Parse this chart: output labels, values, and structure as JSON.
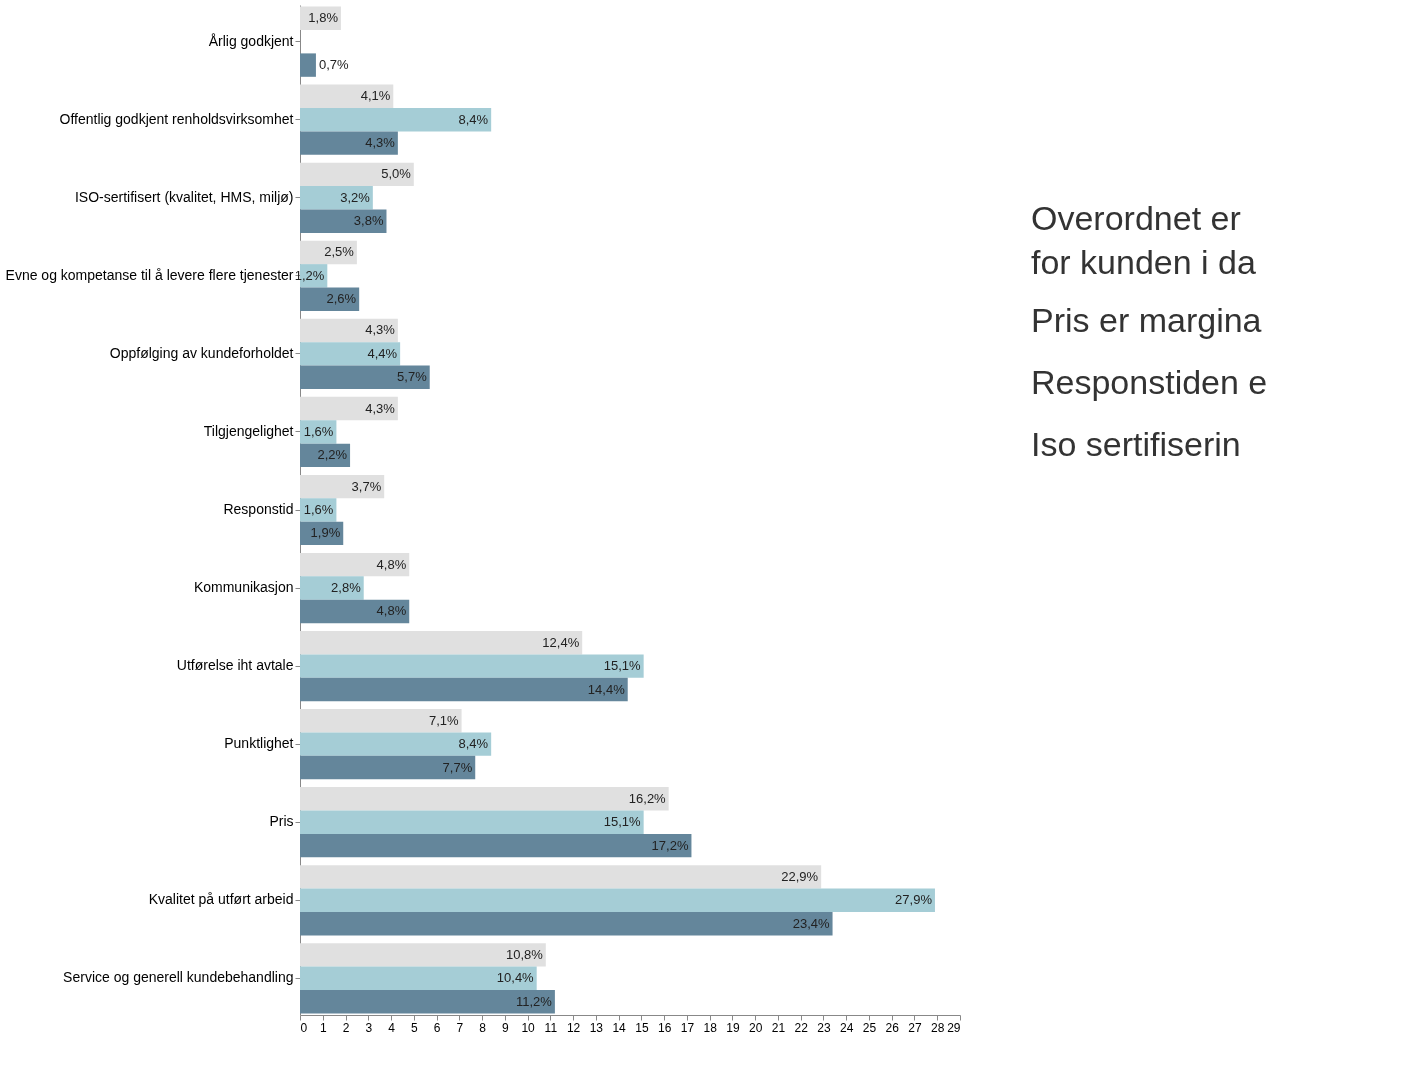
{
  "chart_data": {
    "type": "bar",
    "orientation": "horizontal",
    "categories": [
      "Årlig godkjent",
      "Offentlig godkjent renholdsvirksomhet",
      "ISO-sertifisert (kvalitet, HMS, miljø)",
      "Evne og kompetanse til å levere flere tjenester",
      "Oppfølging av kundeforholdet",
      "Tilgjengelighet",
      "Responstid",
      "Kommunikasjon",
      "Utførelse iht avtale",
      "Punktlighet",
      "Pris",
      "Kvalitet på utført arbeid",
      "Service og generell kundebehandling"
    ],
    "series": [
      {
        "color": "#e0e0e0",
        "values": [
          1.8,
          4.1,
          5.0,
          2.5,
          4.3,
          4.3,
          3.7,
          4.8,
          12.4,
          7.1,
          16.2,
          22.9,
          10.8
        ],
        "value_labels": [
          "1,8%",
          "4,1%",
          "5,0%",
          "2,5%",
          "4,3%",
          "4,3%",
          "3,7%",
          "4,8%",
          "12,4%",
          "7,1%",
          "16,2%",
          "22,9%",
          "10,8%"
        ]
      },
      {
        "color": "#a5cdd6",
        "values": [
          null,
          8.4,
          3.2,
          1.2,
          4.4,
          1.6,
          1.6,
          2.8,
          15.1,
          8.4,
          15.1,
          27.9,
          10.4
        ],
        "value_labels": [
          null,
          "8,4%",
          "3,2%",
          "1,2%",
          "4,4%",
          "1,6%",
          "1,6%",
          "2,8%",
          "15,1%",
          "8,4%",
          "15,1%",
          "27,9%",
          "10,4%"
        ]
      },
      {
        "color": "#64869b",
        "values": [
          0.7,
          4.3,
          3.8,
          2.6,
          5.7,
          2.2,
          1.9,
          4.8,
          14.4,
          7.7,
          17.2,
          23.4,
          11.2
        ],
        "value_labels": [
          "0,7%",
          "4,3%",
          "3,8%",
          "2,6%",
          "5,7%",
          "2,2%",
          "1,9%",
          "4,8%",
          "14,4%",
          "7,7%",
          "17,2%",
          "23,4%",
          "11,2%"
        ]
      }
    ],
    "xlim": [
      0,
      29
    ],
    "xticks": [
      0,
      1,
      2,
      3,
      4,
      5,
      6,
      7,
      8,
      9,
      10,
      11,
      12,
      13,
      14,
      15,
      16,
      17,
      18,
      19,
      20,
      21,
      22,
      23,
      24,
      25,
      26,
      27,
      28,
      29
    ],
    "grid": false,
    "legend": false,
    "annotations": [
      "Overordnet er\nfor kunden i da",
      "Pris er margina",
      "Responstiden e",
      "Iso sertifiserin"
    ]
  }
}
